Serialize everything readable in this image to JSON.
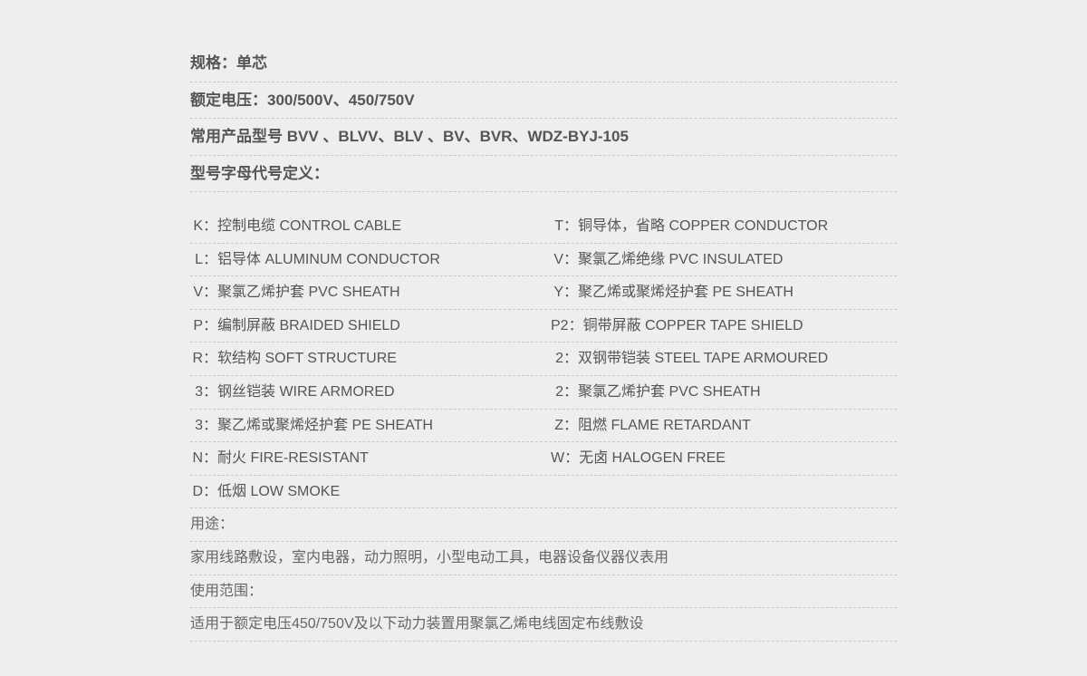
{
  "header": {
    "spec_label": "规格：",
    "spec_value": "单芯",
    "voltage_label": "额定电压：",
    "voltage_value": "300/500V、450/750V",
    "models_label": "常用产品型号 ",
    "models_value": "BVV 、BLVV、BLV 、BV、BVR、WDZ-BYJ-105",
    "codedef_label": "型号字母代号定义："
  },
  "codes": [
    {
      "lkey": "K：",
      "ltext": "控制电缆 CONTROL CABLE",
      "rkey": "T：",
      "rtext": "铜导体，省略 COPPER CONDUCTOR"
    },
    {
      "lkey": "L：",
      "ltext": "铝导体 ALUMINUM CONDUCTOR",
      "rkey": "V：",
      "rtext": "聚氯乙烯绝缘 PVC INSULATED"
    },
    {
      "lkey": "V：",
      "ltext": "聚氯乙烯护套 PVC SHEATH",
      "rkey": "Y：",
      "rtext": "聚乙烯或聚烯烃护套 PE SHEATH"
    },
    {
      "lkey": "P：",
      "ltext": "编制屏蔽 BRAIDED SHIELD",
      "rkey": "P2：",
      "rtext": "铜带屏蔽 COPPER TAPE SHIELD"
    },
    {
      "lkey": "R：",
      "ltext": "软结构 SOFT STRUCTURE",
      "rkey": "2：",
      "rtext": "双钢带铠装 STEEL TAPE ARMOURED"
    },
    {
      "lkey": "3：",
      "ltext": "钢丝铠装 WIRE ARMORED",
      "rkey": "2：",
      "rtext": "聚氯乙烯护套 PVC SHEATH"
    },
    {
      "lkey": "3：",
      "ltext": "聚乙烯或聚烯烃护套 PE SHEATH",
      "rkey": "Z：",
      "rtext": "阻燃 FLAME RETARDANT"
    },
    {
      "lkey": "N：",
      "ltext": "耐火 FIRE-RESISTANT",
      "rkey": "W：",
      "rtext": "无卤 HALOGEN FREE"
    },
    {
      "lkey": "D：",
      "ltext": "低烟 LOW SMOKE",
      "rkey": "",
      "rtext": ""
    }
  ],
  "footer": {
    "usage_label": "用途：",
    "usage_value": "家用线路敷设，室内电器，动力照明，小型电动工具，电器设备仪器仪表用",
    "scope_label": "使用范围：",
    "scope_value": "适用于额定电压450/750V及以下动力装置用聚氯乙烯电线固定布线敷设"
  }
}
